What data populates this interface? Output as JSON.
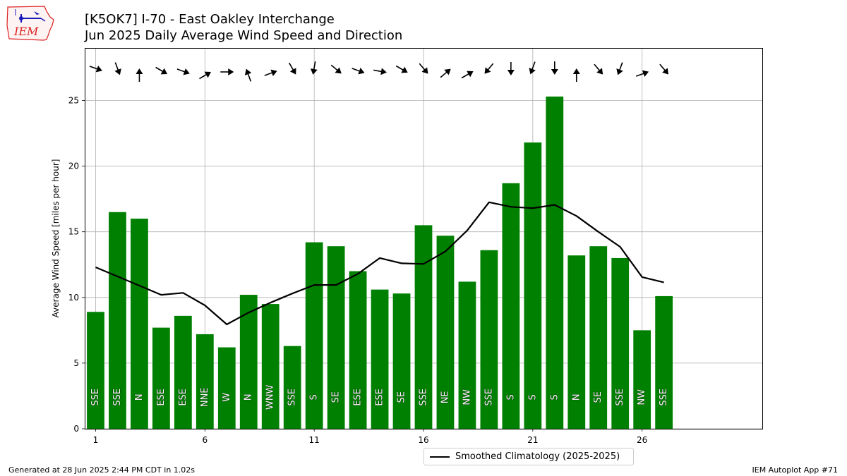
{
  "header": {
    "title_line1": "[K5OK7] I-70 - East Oakley Interchange",
    "title_line2": "Jun 2025 Daily Average Wind Speed and Direction",
    "logo_text": "IEM"
  },
  "footer": {
    "generated": "Generated at 28 Jun 2025 2:44 PM CDT in 1.02s",
    "app": "IEM Autoplot App #71"
  },
  "legend": {
    "label": "Smoothed Climatology (2025-2025)"
  },
  "chart_data": {
    "type": "bar",
    "ylabel": "Average Wind Speed [miles per hour]",
    "xlabel": "",
    "xlim": [
      0.5,
      31.5
    ],
    "ylim": [
      0,
      29
    ],
    "x_ticks": [
      1,
      6,
      11,
      16,
      21,
      26
    ],
    "y_ticks": [
      0,
      5,
      10,
      15,
      20,
      25
    ],
    "grid": true,
    "legend_position": "bottom-center",
    "colors": {
      "bar": "#008000",
      "climatology": "#000000",
      "arrow": "#000000"
    },
    "days": [
      1,
      2,
      3,
      4,
      5,
      6,
      7,
      8,
      9,
      10,
      11,
      12,
      13,
      14,
      15,
      16,
      17,
      18,
      19,
      20,
      21,
      22,
      23,
      24,
      25,
      26,
      27
    ],
    "values": [
      8.9,
      16.5,
      16.0,
      7.7,
      8.6,
      7.2,
      6.2,
      10.2,
      9.5,
      6.3,
      14.2,
      13.9,
      12.0,
      10.6,
      10.3,
      15.5,
      14.7,
      11.2,
      13.6,
      18.7,
      21.8,
      25.3,
      13.2,
      13.9,
      13.0,
      7.5,
      10.1
    ],
    "directions": [
      "SSE",
      "SSE",
      "N",
      "ESE",
      "ESE",
      "NNE",
      "W",
      "N",
      "WNW",
      "SSE",
      "S",
      "SE",
      "ESE",
      "ESE",
      "SE",
      "SSE",
      "NE",
      "NW",
      "SSE",
      "S",
      "S",
      "S",
      "N",
      "SE",
      "SSE",
      "NW",
      "SSE"
    ],
    "arrow_directions_deg": [
      290,
      340,
      180,
      300,
      290,
      240,
      270,
      160,
      250,
      330,
      10,
      310,
      290,
      280,
      300,
      320,
      230,
      240,
      40,
      0,
      20,
      0,
      180,
      320,
      20,
      250,
      320
    ],
    "series": [
      {
        "name": "Smoothed Climatology (2025-2025)",
        "x": [
          1,
          2,
          3,
          4,
          5,
          6,
          7,
          8,
          9,
          10,
          11,
          12,
          13,
          14,
          15,
          16,
          17,
          18,
          19,
          20,
          21,
          22,
          23,
          24,
          25,
          26,
          27
        ],
        "values": [
          12.3,
          11.6,
          10.9,
          10.2,
          10.35,
          9.4,
          7.95,
          8.85,
          9.6,
          10.3,
          10.95,
          10.95,
          11.8,
          13.0,
          12.6,
          12.55,
          13.5,
          15.1,
          17.25,
          16.9,
          16.8,
          17.05,
          16.2,
          15.0,
          13.85,
          11.55,
          11.15
        ]
      }
    ]
  }
}
